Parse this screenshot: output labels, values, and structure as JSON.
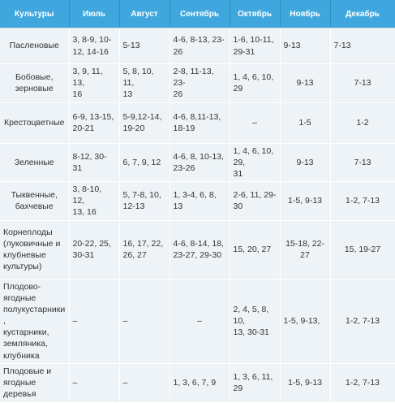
{
  "headers": [
    "Культуры",
    "Июль",
    "Август",
    "Сентябрь",
    "Октябрь",
    "Ноябрь",
    "Декабрь"
  ],
  "rows": [
    [
      "Пасленовые",
      "3, 8-9, 10-\n12, 14-16",
      "5-13",
      "4-6, 8-13, 23-26",
      "1-6, 10-11,\n29-31",
      "9-13",
      "7-13"
    ],
    [
      "Бобовые,\nзерновые",
      "3, 9, 11, 13,\n16",
      "5, 8, 10, 11,\n13",
      "2-8, 11-13, 23-\n26",
      "1, 4, 6, 10, 29",
      "9-13",
      "7-13"
    ],
    [
      "Крестоцветные",
      "6-9, 13-15,\n20-21",
      "5-9,12-14,\n19-20",
      "4-6, 8,11-13,\n18-19",
      "–",
      "1-5",
      "1-2"
    ],
    [
      "Зеленные",
      "8-12, 30-31",
      "6, 7, 9, 12",
      "4-6, 8, 10-13,\n23-26",
      "1, 4, 6, 10, 29,\n31",
      "9-13",
      "7-13"
    ],
    [
      "Тыквенные,\nбахчевые",
      "3, 8-10, 12,\n13, 16",
      "5, 7-8, 10,\n12-13",
      "1, 3-4, 6, 8, 13",
      "2-6, 11, 29-\n30",
      "1-5, 9-13",
      "1-2, 7-13"
    ],
    [
      "Корнеплоды\n(луковичные и\nклубневые\nкультуры)",
      "20-22, 25,\n30-31",
      "16, 17, 22,\n26, 27",
      "4-6, 8-14, 18,\n23-27, 29-30",
      "15, 20, 27",
      "15-18, 22-27",
      "15, 19-27"
    ],
    [
      "Плодово-ягодные\nполукустарники,\nкустарники,\nземляника,\nклубника",
      "–",
      "–",
      "–",
      "2, 4, 5, 8, 10,\n13, 30-31",
      "1-5, 9-13,",
      "1-2, 7-13"
    ],
    [
      "Плодовые и\nягодные деревья",
      "–",
      "–",
      "1, 3, 6, 7, 9",
      "1, 3, 6, 11, 29",
      "1-5, 9-13",
      "1-2, 7-13"
    ]
  ]
}
